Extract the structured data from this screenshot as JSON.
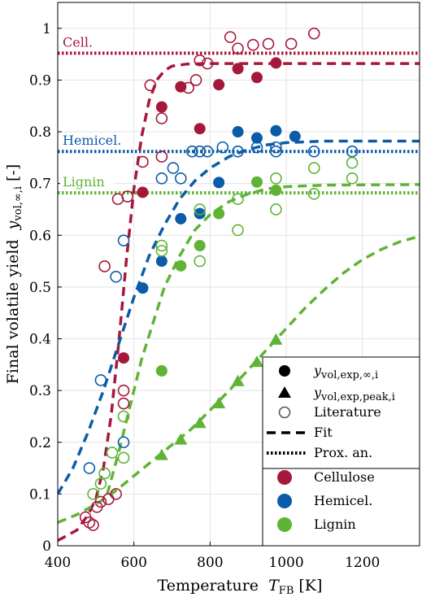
{
  "chart_data": {
    "type": "scatter",
    "title": "",
    "xlabel": "Temperature",
    "xlabel_symbol": "T",
    "xlabel_sub": "FB",
    "xlabel_unit": "[K]",
    "ylabel": "Final volatile yield",
    "ylabel_symbol": "y",
    "ylabel_sub": "vol,∞,i",
    "ylabel_unit": "[-]",
    "xlim": [
      400,
      1350
    ],
    "ylim": [
      0,
      1.05
    ],
    "xticks": [
      400,
      600,
      800,
      1000,
      1200
    ],
    "xtick_labels": [
      "400",
      "600",
      "800",
      "1000",
      "1200"
    ],
    "yticks": [
      0,
      0.1,
      0.2,
      0.3,
      0.4,
      0.5,
      0.6,
      0.7,
      0.8,
      0.9,
      1
    ],
    "ytick_labels": [
      "0",
      "0.1",
      "0.2",
      "0.3",
      "0.4",
      "0.5",
      "0.6",
      "0.7",
      "0.8",
      "0.9",
      "1"
    ],
    "grid": true,
    "colors": {
      "cellulose": "#a5183c",
      "hemicel": "#0b5ca8",
      "lignin": "#5fb336"
    },
    "proximate": [
      {
        "label": "Cell.",
        "value": 0.952,
        "color": "#a5183c"
      },
      {
        "label": "Hemicel.",
        "value": 0.762,
        "color": "#0b5ca8"
      },
      {
        "label": "Lignin",
        "value": 0.682,
        "color": "#5fb336"
      }
    ],
    "series": [
      {
        "group": "Cellulose",
        "kind": "exp_inf",
        "color": "#a5183c",
        "points": [
          [
            573,
            0.363
          ],
          [
            623,
            0.683
          ],
          [
            673,
            0.848
          ],
          [
            723,
            0.887
          ],
          [
            773,
            0.806
          ],
          [
            823,
            0.891
          ],
          [
            873,
            0.922
          ],
          [
            923,
            0.905
          ],
          [
            973,
            0.933
          ]
        ]
      },
      {
        "group": "Hemicel.",
        "kind": "exp_inf",
        "color": "#0b5ca8",
        "points": [
          [
            623,
            0.498
          ],
          [
            673,
            0.55
          ],
          [
            723,
            0.632
          ],
          [
            773,
            0.642
          ],
          [
            823,
            0.702
          ],
          [
            873,
            0.8
          ],
          [
            923,
            0.788
          ],
          [
            973,
            0.802
          ],
          [
            1023,
            0.791
          ]
        ]
      },
      {
        "group": "Lignin",
        "kind": "exp_inf",
        "color": "#5fb336",
        "points": [
          [
            673,
            0.338
          ],
          [
            723,
            0.541
          ],
          [
            773,
            0.58
          ],
          [
            823,
            0.642
          ],
          [
            923,
            0.703
          ],
          [
            973,
            0.687
          ]
        ]
      },
      {
        "group": "Lignin",
        "kind": "exp_peak",
        "color": "#5fb336",
        "points": [
          [
            673,
            0.175
          ],
          [
            723,
            0.205
          ],
          [
            773,
            0.237
          ],
          [
            823,
            0.275
          ],
          [
            873,
            0.318
          ],
          [
            923,
            0.355
          ],
          [
            973,
            0.398
          ]
        ]
      },
      {
        "group": "Cellulose",
        "kind": "literature",
        "color": "#a5183c",
        "points": [
          [
            473,
            0.055
          ],
          [
            483,
            0.045
          ],
          [
            493,
            0.04
          ],
          [
            503,
            0.075
          ],
          [
            513,
            0.085
          ],
          [
            523,
            0.54
          ],
          [
            533,
            0.09
          ],
          [
            553,
            0.1
          ],
          [
            558,
            0.67
          ],
          [
            573,
            0.3
          ],
          [
            573,
            0.275
          ],
          [
            583,
            0.675
          ],
          [
            623,
            0.742
          ],
          [
            643,
            0.89
          ],
          [
            673,
            0.826
          ],
          [
            673,
            0.752
          ],
          [
            743,
            0.885
          ],
          [
            763,
            0.9
          ],
          [
            773,
            0.938
          ],
          [
            793,
            0.932
          ],
          [
            853,
            0.983
          ],
          [
            873,
            0.961
          ],
          [
            913,
            0.968
          ],
          [
            953,
            0.97
          ],
          [
            1013,
            0.97
          ],
          [
            1073,
            0.99
          ]
        ]
      },
      {
        "group": "Hemicel.",
        "kind": "literature",
        "color": "#0b5ca8",
        "points": [
          [
            483,
            0.15
          ],
          [
            513,
            0.32
          ],
          [
            553,
            0.52
          ],
          [
            573,
            0.59
          ],
          [
            573,
            0.2
          ],
          [
            673,
            0.71
          ],
          [
            703,
            0.73
          ],
          [
            723,
            0.71
          ],
          [
            753,
            0.762
          ],
          [
            773,
            0.762
          ],
          [
            793,
            0.762
          ],
          [
            833,
            0.77
          ],
          [
            873,
            0.762
          ],
          [
            923,
            0.77
          ],
          [
            973,
            0.77
          ],
          [
            973,
            0.762
          ],
          [
            1073,
            0.762
          ],
          [
            1173,
            0.762
          ]
        ]
      },
      {
        "group": "Lignin",
        "kind": "literature",
        "color": "#5fb336",
        "points": [
          [
            493,
            0.1
          ],
          [
            513,
            0.12
          ],
          [
            523,
            0.14
          ],
          [
            543,
            0.18
          ],
          [
            573,
            0.25
          ],
          [
            573,
            0.17
          ],
          [
            673,
            0.58
          ],
          [
            673,
            0.57
          ],
          [
            773,
            0.65
          ],
          [
            773,
            0.55
          ],
          [
            873,
            0.61
          ],
          [
            873,
            0.67
          ],
          [
            973,
            0.71
          ],
          [
            973,
            0.65
          ],
          [
            1073,
            0.73
          ],
          [
            1073,
            0.68
          ],
          [
            1173,
            0.74
          ],
          [
            1173,
            0.71
          ]
        ]
      }
    ],
    "fits": [
      {
        "group": "Cellulose",
        "color": "#a5183c",
        "points": [
          [
            400,
            0.01
          ],
          [
            450,
            0.03
          ],
          [
            480,
            0.06
          ],
          [
            500,
            0.09
          ],
          [
            520,
            0.15
          ],
          [
            540,
            0.25
          ],
          [
            560,
            0.39
          ],
          [
            580,
            0.55
          ],
          [
            600,
            0.69
          ],
          [
            620,
            0.79
          ],
          [
            640,
            0.86
          ],
          [
            660,
            0.9
          ],
          [
            680,
            0.918
          ],
          [
            700,
            0.927
          ],
          [
            740,
            0.931
          ],
          [
            800,
            0.932
          ],
          [
            1000,
            0.932
          ],
          [
            1350,
            0.932
          ]
        ]
      },
      {
        "group": "Hemicel.",
        "color": "#0b5ca8",
        "points": [
          [
            400,
            0.1
          ],
          [
            440,
            0.15
          ],
          [
            480,
            0.22
          ],
          [
            520,
            0.3
          ],
          [
            560,
            0.39
          ],
          [
            600,
            0.48
          ],
          [
            640,
            0.56
          ],
          [
            680,
            0.62
          ],
          [
            720,
            0.67
          ],
          [
            760,
            0.705
          ],
          [
            800,
            0.73
          ],
          [
            850,
            0.752
          ],
          [
            900,
            0.766
          ],
          [
            950,
            0.775
          ],
          [
            1000,
            0.779
          ],
          [
            1100,
            0.782
          ],
          [
            1350,
            0.782
          ]
        ]
      },
      {
        "group": "Lignin",
        "color": "#5fb336",
        "points": [
          [
            530,
            0.1
          ],
          [
            560,
            0.18
          ],
          [
            590,
            0.27
          ],
          [
            620,
            0.36
          ],
          [
            650,
            0.43
          ],
          [
            680,
            0.5
          ],
          [
            720,
            0.56
          ],
          [
            760,
            0.61
          ],
          [
            800,
            0.64
          ],
          [
            850,
            0.665
          ],
          [
            900,
            0.68
          ],
          [
            950,
            0.69
          ],
          [
            1000,
            0.694
          ],
          [
            1100,
            0.697
          ],
          [
            1350,
            0.698
          ]
        ]
      },
      {
        "group": "Lignin",
        "color": "#5fb336",
        "points": [
          [
            400,
            0.045
          ],
          [
            450,
            0.06
          ],
          [
            500,
            0.08
          ],
          [
            550,
            0.105
          ],
          [
            600,
            0.135
          ],
          [
            650,
            0.165
          ],
          [
            700,
            0.195
          ],
          [
            750,
            0.225
          ],
          [
            800,
            0.262
          ],
          [
            850,
            0.3
          ],
          [
            900,
            0.34
          ],
          [
            950,
            0.38
          ],
          [
            1000,
            0.42
          ],
          [
            1050,
            0.46
          ],
          [
            1100,
            0.495
          ],
          [
            1150,
            0.527
          ],
          [
            1200,
            0.553
          ],
          [
            1250,
            0.573
          ],
          [
            1300,
            0.588
          ],
          [
            1350,
            0.598
          ]
        ]
      }
    ],
    "legend": {
      "placement": "lower-right",
      "entries": [
        {
          "marker": "filled-circle",
          "label": "y",
          "sub": "vol,exp,∞,i"
        },
        {
          "marker": "filled-triangle",
          "label": "y",
          "sub": "vol,exp,peak,i"
        },
        {
          "marker": "open-circle",
          "label": "Literature",
          "sub": ""
        },
        {
          "marker": "dashed-line",
          "label": "Fit",
          "sub": ""
        },
        {
          "marker": "dotted-line",
          "label": "Prox. an.",
          "sub": ""
        },
        {
          "marker": "color-circle",
          "label": "Cellulose",
          "sub": "",
          "color": "#a5183c"
        },
        {
          "marker": "color-circle",
          "label": "Hemicel.",
          "sub": "",
          "color": "#0b5ca8"
        },
        {
          "marker": "color-circle",
          "label": "Lignin",
          "sub": "",
          "color": "#5fb336"
        }
      ]
    }
  }
}
